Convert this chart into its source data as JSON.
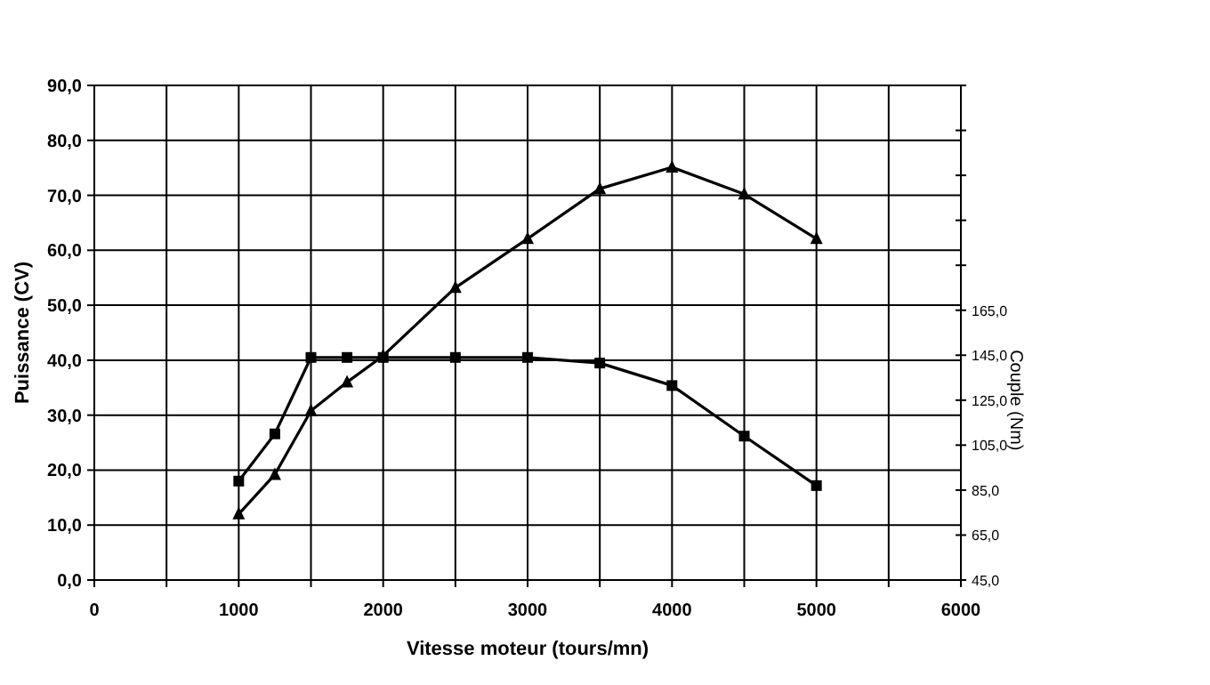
{
  "chart_data": {
    "type": "line",
    "xlabel": "Vitesse moteur (tours/mn)",
    "ylabel": "Puissance (CV)",
    "y2label": "Couple (Nm)",
    "x": [
      1000,
      1250,
      1500,
      1750,
      2000,
      2500,
      3000,
      3500,
      4000,
      4500,
      5000
    ],
    "series": [
      {
        "color": "#000000",
        "marker": "triangle",
        "values": [
          12.0,
          19.2,
          30.8,
          36.0,
          40.8,
          53.2,
          62.1,
          71.2,
          75.1,
          70.2,
          62.1
        ]
      },
      {
        "color": "#000000",
        "marker": "square",
        "axis": "y2",
        "values": [
          89,
          110,
          144,
          144,
          144,
          144,
          144,
          141.5,
          131.5,
          109,
          87
        ]
      }
    ],
    "xlim": [
      0,
      6000
    ],
    "xticks": [
      0,
      {
        "value": 500,
        "label": null
      },
      1000,
      {
        "value": 1500,
        "label": null
      },
      2000,
      {
        "value": 2500,
        "label": null
      },
      3000,
      {
        "value": 3500,
        "label": null
      },
      4000,
      {
        "value": 4500,
        "label": null
      },
      5000,
      {
        "value": 5500,
        "label": null
      },
      6000
    ],
    "ylim": [
      0,
      90
    ],
    "yticks": [
      {
        "value": 0,
        "label": "0,0"
      },
      {
        "value": 10,
        "label": "10,0"
      },
      {
        "value": 20,
        "label": "20,0"
      },
      {
        "value": 30,
        "label": "30,0"
      },
      {
        "value": 40,
        "label": "40,0"
      },
      {
        "value": 50,
        "label": "50,0"
      },
      {
        "value": 60,
        "label": "60,0"
      },
      {
        "value": 70,
        "label": "70,0"
      },
      {
        "value": 80,
        "label": "80,0"
      },
      {
        "value": 90,
        "label": "90,0"
      }
    ],
    "y2lim": [
      45,
      265
    ],
    "y2ticks": [
      {
        "value": 45,
        "label": "45,0"
      },
      {
        "value": 65,
        "label": "65,0"
      },
      {
        "value": 85,
        "label": "85,0"
      },
      {
        "value": 105,
        "label": "105,0"
      },
      {
        "value": 125,
        "label": "125,0"
      },
      {
        "value": 145,
        "label": "145,0"
      },
      {
        "value": 165,
        "label": "165,0"
      },
      {
        "value": 185,
        "label": null
      },
      {
        "value": 205,
        "label": null
      },
      {
        "value": 225,
        "label": null
      },
      {
        "value": 245,
        "label": null
      },
      {
        "value": 265,
        "label": null
      }
    ],
    "grid": true,
    "line_style": "solid"
  }
}
